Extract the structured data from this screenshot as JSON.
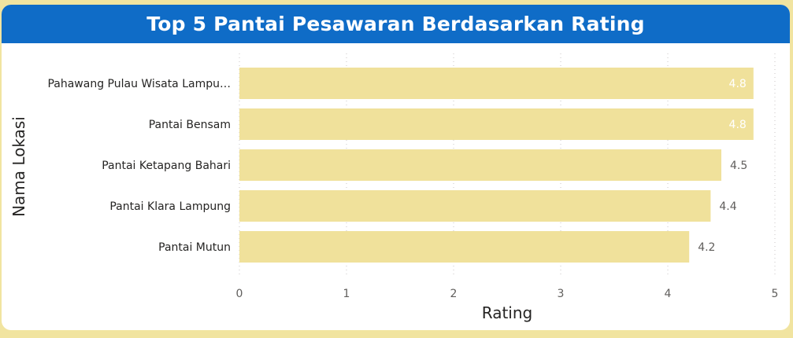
{
  "title": "Top 5 Pantai Pesawaran Berdasarkan Rating",
  "colors": {
    "background": "#f1e4a0",
    "header": "#0f6cc7",
    "bar": "#f0e19b",
    "label_inside": "#ffffff",
    "label_outside": "#605e5c"
  },
  "chart_data": {
    "type": "bar",
    "orientation": "horizontal",
    "categories": [
      "Pahawang Pulau Wisata Lampu…",
      "Pantai Bensam",
      "Pantai Ketapang Bahari",
      "Pantai Klara Lampung",
      "Pantai Mutun"
    ],
    "values": [
      4.8,
      4.8,
      4.5,
      4.4,
      4.2
    ],
    "value_labels": [
      "4.8",
      "4.8",
      "4.5",
      "4.4",
      "4.2"
    ],
    "xlabel": "Rating",
    "ylabel": "Nama Lokasi",
    "xlim": [
      0,
      5
    ],
    "xticks": [
      0,
      1,
      2,
      3,
      4,
      5
    ],
    "grid": "vertical-dotted",
    "legend": "none"
  }
}
